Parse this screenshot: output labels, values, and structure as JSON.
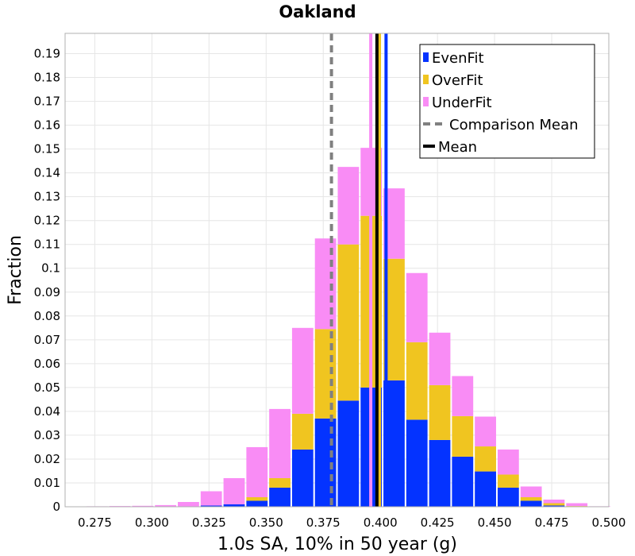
{
  "chart_data": {
    "type": "bar",
    "title": "Oakland",
    "xlabel": "1.0s SA, 10% in 50 year (g)",
    "ylabel": "Fraction",
    "xlim": [
      0.262,
      0.5
    ],
    "ylim": [
      0,
      0.1985
    ],
    "grid": true,
    "stacked": true,
    "bin_width": 0.01,
    "x_ticks": [
      "0.275",
      "0.300",
      "0.325",
      "0.350",
      "0.375",
      "0.400",
      "0.425",
      "0.450",
      "0.475",
      "0.500"
    ],
    "y_ticks": [
      "0",
      "0.01",
      "0.02",
      "0.03",
      "0.04",
      "0.05",
      "0.06",
      "0.07",
      "0.08",
      "0.09",
      "0.1",
      "0.11",
      "0.12",
      "0.13",
      "0.14",
      "0.15",
      "0.16",
      "0.17",
      "0.18",
      "0.19"
    ],
    "bin_centers": [
      0.276,
      0.286,
      0.296,
      0.306,
      0.316,
      0.326,
      0.336,
      0.346,
      0.356,
      0.366,
      0.376,
      0.386,
      0.396,
      0.406,
      0.416,
      0.426,
      0.436,
      0.446,
      0.456,
      0.466,
      0.476,
      0.486,
      0.496
    ],
    "series": [
      {
        "name": "EvenFit",
        "color": "#0433ff",
        "values": [
          0,
          0,
          0,
          0,
          0,
          0.0005,
          0.001,
          0.0025,
          0.008,
          0.024,
          0.037,
          0.0445,
          0.05,
          0.053,
          0.0365,
          0.028,
          0.021,
          0.0148,
          0.008,
          0.0025,
          0.0005,
          0,
          0
        ]
      },
      {
        "name": "OverFit",
        "color": "#f0c520",
        "values": [
          0,
          0,
          0,
          0,
          0,
          0,
          0,
          0.0015,
          0.004,
          0.015,
          0.0375,
          0.0655,
          0.072,
          0.051,
          0.0325,
          0.023,
          0.017,
          0.0105,
          0.0055,
          0.0015,
          0.001,
          0.0003,
          0
        ]
      },
      {
        "name": "UnderFit",
        "color": "#f98cf5",
        "values": [
          0.0002,
          0.0003,
          0.0004,
          0.0007,
          0.002,
          0.006,
          0.011,
          0.021,
          0.029,
          0.036,
          0.038,
          0.0325,
          0.0285,
          0.0295,
          0.029,
          0.022,
          0.0168,
          0.0125,
          0.0105,
          0.0045,
          0.0015,
          0.0012,
          0.0002
        ]
      }
    ],
    "lines": [
      {
        "name": "Comparison Mean",
        "x": 0.3786,
        "color": "#808080",
        "style": "dashed"
      },
      {
        "name": "Mean",
        "x": 0.3985,
        "color": "#000000",
        "style": "solid"
      }
    ],
    "series_mean_lines": [
      {
        "series": "UnderFit",
        "x": 0.3958,
        "color": "#f98cf5"
      },
      {
        "series": "OverFit",
        "x": 0.3996,
        "color": "#f0c520"
      },
      {
        "series": "EvenFit",
        "x": 0.4025,
        "color": "#0433ff"
      }
    ],
    "legend": {
      "placement": "top-right",
      "entries": [
        {
          "label": "EvenFit",
          "kind": "box",
          "color": "#0433ff"
        },
        {
          "label": "OverFit",
          "kind": "box",
          "color": "#f0c520"
        },
        {
          "label": "UnderFit",
          "kind": "box",
          "color": "#f98cf5"
        },
        {
          "label": "Comparison Mean",
          "kind": "dashed",
          "color": "#808080"
        },
        {
          "label": "Mean",
          "kind": "solid",
          "color": "#000000"
        }
      ]
    }
  }
}
